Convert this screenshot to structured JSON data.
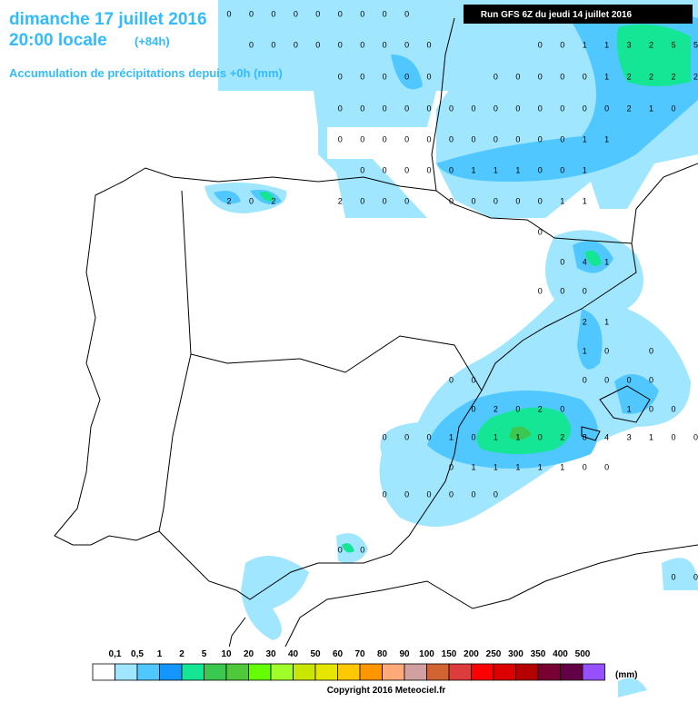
{
  "header": {
    "line1": "dimanche 17 juillet 2016",
    "line2": "20:00 locale",
    "line2_note": "(+84h)",
    "line3": "Accumulation de précipitations depuis +0h (mm)",
    "run": "Run GFS 6Z du jeudi 14 juillet 2016"
  },
  "grid_values": [
    [
      null,
      null,
      null,
      null,
      null,
      null,
      null,
      null,
      null,
      null,
      0,
      0,
      0,
      0,
      0,
      0,
      0,
      0,
      0,
      null,
      null,
      null,
      null,
      null,
      null,
      null,
      null,
      null,
      null,
      null,
      null,
      null
    ],
    [
      null,
      null,
      null,
      null,
      null,
      null,
      null,
      null,
      null,
      null,
      null,
      0,
      0,
      0,
      0,
      0,
      0,
      0,
      0,
      0,
      null,
      null,
      null,
      null,
      0,
      0,
      1,
      1,
      3,
      2,
      5,
      5
    ],
    [
      null,
      null,
      null,
      null,
      null,
      null,
      null,
      null,
      null,
      null,
      null,
      null,
      null,
      null,
      null,
      0,
      0,
      0,
      0,
      0,
      null,
      null,
      0,
      0,
      0,
      0,
      0,
      1,
      2,
      2,
      2,
      2
    ],
    [
      null,
      null,
      null,
      null,
      null,
      null,
      null,
      null,
      null,
      null,
      null,
      null,
      null,
      null,
      null,
      0,
      0,
      0,
      0,
      0,
      0,
      0,
      0,
      0,
      0,
      0,
      0,
      0,
      2,
      1,
      0,
      null
    ],
    [
      null,
      null,
      null,
      null,
      null,
      null,
      null,
      null,
      null,
      null,
      null,
      null,
      null,
      null,
      null,
      0,
      0,
      0,
      0,
      0,
      0,
      0,
      0,
      0,
      0,
      0,
      1,
      1,
      null,
      null,
      null,
      null
    ],
    [
      null,
      null,
      null,
      null,
      null,
      null,
      null,
      null,
      null,
      null,
      null,
      null,
      null,
      null,
      null,
      null,
      0,
      0,
      0,
      0,
      0,
      1,
      1,
      1,
      0,
      0,
      1,
      null,
      null,
      null,
      null,
      null
    ],
    [
      null,
      null,
      null,
      null,
      null,
      null,
      null,
      null,
      null,
      null,
      2,
      0,
      2,
      null,
      null,
      2,
      0,
      0,
      0,
      null,
      0,
      0,
      0,
      0,
      0,
      1,
      1,
      null,
      null,
      null,
      null,
      null
    ],
    [
      null,
      null,
      null,
      null,
      null,
      null,
      null,
      null,
      null,
      null,
      null,
      null,
      null,
      null,
      null,
      null,
      null,
      null,
      null,
      null,
      null,
      null,
      null,
      null,
      0,
      null,
      null,
      null,
      null,
      null,
      null,
      null
    ],
    [
      null,
      null,
      null,
      null,
      null,
      null,
      null,
      null,
      null,
      null,
      null,
      null,
      null,
      null,
      null,
      null,
      null,
      null,
      null,
      null,
      null,
      null,
      null,
      null,
      null,
      0,
      4,
      1,
      null,
      null,
      null,
      null
    ],
    [
      null,
      null,
      null,
      null,
      null,
      null,
      null,
      null,
      null,
      null,
      null,
      null,
      null,
      null,
      null,
      null,
      null,
      null,
      null,
      null,
      null,
      null,
      null,
      null,
      0,
      0,
      0,
      null,
      null,
      null,
      null,
      null
    ],
    [
      null,
      null,
      null,
      null,
      null,
      null,
      null,
      null,
      null,
      null,
      null,
      null,
      null,
      null,
      null,
      null,
      null,
      null,
      null,
      null,
      null,
      null,
      null,
      null,
      null,
      null,
      2,
      1,
      null,
      null,
      null,
      null
    ],
    [
      null,
      null,
      null,
      null,
      null,
      null,
      null,
      null,
      null,
      null,
      null,
      null,
      null,
      null,
      null,
      null,
      null,
      null,
      null,
      null,
      null,
      null,
      null,
      null,
      null,
      null,
      1,
      0,
      null,
      0,
      null,
      null
    ],
    [
      null,
      null,
      null,
      null,
      null,
      null,
      null,
      null,
      null,
      null,
      null,
      null,
      null,
      null,
      null,
      null,
      null,
      null,
      null,
      null,
      0,
      0,
      null,
      null,
      null,
      null,
      0,
      0,
      0,
      0,
      null,
      null
    ],
    [
      null,
      null,
      null,
      null,
      null,
      null,
      null,
      null,
      null,
      null,
      null,
      null,
      null,
      null,
      null,
      null,
      null,
      null,
      null,
      null,
      null,
      0,
      2,
      0,
      2,
      0,
      null,
      null,
      1,
      0,
      0,
      null
    ],
    [
      null,
      null,
      null,
      null,
      null,
      null,
      null,
      null,
      null,
      null,
      null,
      null,
      null,
      null,
      null,
      null,
      null,
      0,
      0,
      0,
      1,
      0,
      1,
      1,
      0,
      2,
      8,
      4,
      3,
      1,
      0,
      0
    ],
    [
      null,
      null,
      null,
      null,
      null,
      null,
      null,
      null,
      null,
      null,
      null,
      null,
      null,
      null,
      null,
      null,
      null,
      null,
      null,
      null,
      0,
      1,
      1,
      1,
      1,
      1,
      0,
      0,
      null,
      null,
      null,
      null
    ],
    [
      null,
      null,
      null,
      null,
      null,
      null,
      null,
      null,
      null,
      null,
      null,
      null,
      null,
      null,
      null,
      null,
      null,
      0,
      0,
      0,
      0,
      0,
      0,
      null,
      null,
      null,
      null,
      null,
      null,
      null,
      null,
      null
    ],
    [
      null,
      null,
      null,
      null,
      null,
      null,
      null,
      null,
      null,
      null,
      null,
      null,
      null,
      null,
      null,
      0,
      0,
      null,
      null,
      null,
      null,
      null,
      null,
      null,
      null,
      null,
      null,
      null,
      null,
      null,
      null,
      null
    ],
    [
      null,
      null,
      null,
      null,
      null,
      null,
      null,
      null,
      null,
      null,
      null,
      null,
      null,
      null,
      null,
      null,
      null,
      null,
      null,
      null,
      null,
      null,
      null,
      null,
      null,
      null,
      null,
      null,
      null,
      null,
      0,
      0
    ]
  ],
  "legend": {
    "labels": [
      "0,1",
      "0,5",
      "1",
      "2",
      "5",
      "10",
      "20",
      "30",
      "40",
      "50",
      "60",
      "70",
      "80",
      "90",
      "100",
      "150",
      "200",
      "250",
      "300",
      "350",
      "400",
      "500"
    ],
    "colors": [
      "#ffffff",
      "#a0e6ff",
      "#50c8ff",
      "#1496ff",
      "#14e696",
      "#3cc850",
      "#50c83c",
      "#64ff00",
      "#a0ff28",
      "#c8e600",
      "#e6e600",
      "#ffc800",
      "#ff9600",
      "#ffaa78",
      "#d2a0a0",
      "#d26432",
      "#dc3c3c",
      "#ff0000",
      "#dc0000",
      "#b40000",
      "#780032",
      "#640046",
      "#9650ff"
    ],
    "unit": "(mm)"
  },
  "copyright": "Copyright 2016 Meteociel.fr"
}
